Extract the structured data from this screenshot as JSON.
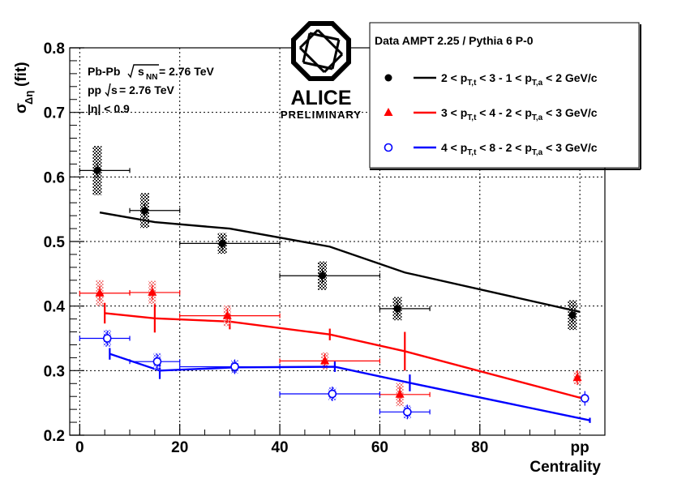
{
  "chart_data": {
    "type": "scatter",
    "xlabel": "Centrality",
    "ylabel": "σ_Δη (fit)",
    "xlim": [
      -2,
      105
    ],
    "ylim": [
      0.2,
      0.8
    ],
    "x_ticks": [
      "0",
      "20",
      "40",
      "60",
      "80"
    ],
    "x_extra_tick": "pp",
    "y_ticks": [
      "0.2",
      "0.3",
      "0.4",
      "0.5",
      "0.6",
      "0.7",
      "0.8"
    ],
    "grid": true,
    "colors": {
      "s1": "#000000",
      "s2": "#ff0000",
      "s3": "#0000ff",
      "sys_dark": "#222222",
      "sys_red": "#f08080",
      "sys_blue": "#7070ff"
    },
    "annotations": {
      "line1_a": "Pb-Pb ",
      "line1_b": "s",
      "line1_c": "NN",
      "line1_d": " = 2.76 TeV",
      "line2_a": "pp ",
      "line2_b": "s",
      "line2_c": " = 2.76 TeV",
      "line3_a": "|η| < 0.9"
    },
    "logo": {
      "name": "ALICE",
      "subtitle": "PRELIMINARY"
    },
    "legend": {
      "header": "Data  AMPT 2.25 / Pythia 6 P-0",
      "entries": [
        {
          "label_parts": [
            "2 < p",
            "T,t",
            " < 3 - 1 < p",
            "T,a",
            " < 2  GeV/c"
          ],
          "marker": "circle-filled",
          "color": "#000000"
        },
        {
          "label_parts": [
            "3 < p",
            "T,t",
            " < 4 - 2 < p",
            "T,a",
            " < 3  GeV/c"
          ],
          "marker": "triangle-filled",
          "color": "#ff0000"
        },
        {
          "label_parts": [
            "4 < p",
            "T,t",
            " < 8 - 2 < p",
            "T,a",
            " < 3  GeV/c"
          ],
          "marker": "circle-open",
          "color": "#0000ff"
        }
      ]
    },
    "series": [
      {
        "name": "2 < pT,t < 3 - 1 < pT,a < 2 GeV/c",
        "data": [
          {
            "x": 3.5,
            "y": 0.61,
            "xerr": [
              0,
              10
            ]
          },
          {
            "x": 13.0,
            "y": 0.548,
            "xerr": [
              10,
              20
            ]
          },
          {
            "x": 28.5,
            "y": 0.497,
            "xerr": [
              20,
              40
            ]
          },
          {
            "x": 48.5,
            "y": 0.447,
            "xerr": [
              40,
              60
            ]
          },
          {
            "x": 63.5,
            "y": 0.396,
            "xerr": [
              60,
              70
            ]
          },
          {
            "x": 98.5,
            "y": 0.386,
            "xerr": [
              98.5,
              98.5
            ]
          }
        ],
        "sys": [
          0.038,
          0.027,
          0.016,
          0.022,
          0.018,
          0.023
        ],
        "model": {
          "x": [
            4,
            15,
            30,
            50,
            65,
            100
          ],
          "y": [
            0.545,
            0.53,
            0.52,
            0.492,
            0.452,
            0.391
          ]
        }
      },
      {
        "name": "3 < pT,t < 4 - 2 < pT,a < 3 GeV/c",
        "data": [
          {
            "x": 4.0,
            "y": 0.42,
            "xerr": [
              0,
              10
            ]
          },
          {
            "x": 14.5,
            "y": 0.421,
            "xerr": [
              10,
              20
            ]
          },
          {
            "x": 29.5,
            "y": 0.385,
            "xerr": [
              20,
              40
            ]
          },
          {
            "x": 49.0,
            "y": 0.315,
            "xerr": [
              40,
              60
            ]
          },
          {
            "x": 64.0,
            "y": 0.263,
            "xerr": [
              60,
              70
            ]
          },
          {
            "x": 99.5,
            "y": 0.289,
            "xerr": [
              99.5,
              99.5
            ]
          }
        ],
        "sys": [
          0.02,
          0.018,
          0.016,
          0.013,
          0.018,
          0.01
        ],
        "model": {
          "x": [
            5,
            15,
            30,
            50,
            65,
            101
          ],
          "y": [
            0.389,
            0.381,
            0.376,
            0.356,
            0.33,
            0.256
          ]
        },
        "model_err": [
          0.016,
          0.022,
          0.012,
          0.009,
          0.03,
          0.004
        ]
      },
      {
        "name": "4 < pT,t < 8 - 2 < pT,a < 3 GeV/c",
        "data": [
          {
            "x": 5.5,
            "y": 0.35,
            "xerr": [
              0,
              10
            ]
          },
          {
            "x": 15.5,
            "y": 0.314,
            "xerr": [
              10,
              20
            ]
          },
          {
            "x": 31.0,
            "y": 0.306,
            "xerr": [
              20,
              40
            ]
          },
          {
            "x": 50.5,
            "y": 0.264,
            "xerr": [
              40,
              60
            ]
          },
          {
            "x": 65.5,
            "y": 0.236,
            "xerr": [
              60,
              70
            ]
          },
          {
            "x": 101.0,
            "y": 0.257,
            "xerr": [
              101,
              101
            ]
          }
        ],
        "sys": [
          0.013,
          0.013,
          0.01,
          0.01,
          0.01,
          0.006
        ],
        "model": {
          "x": [
            6,
            16,
            31,
            51,
            66,
            102
          ],
          "y": [
            0.326,
            0.3,
            0.305,
            0.306,
            0.281,
            0.223
          ]
        },
        "model_err": [
          0.009,
          0.013,
          0.008,
          0.008,
          0.013,
          0.004
        ]
      }
    ]
  }
}
